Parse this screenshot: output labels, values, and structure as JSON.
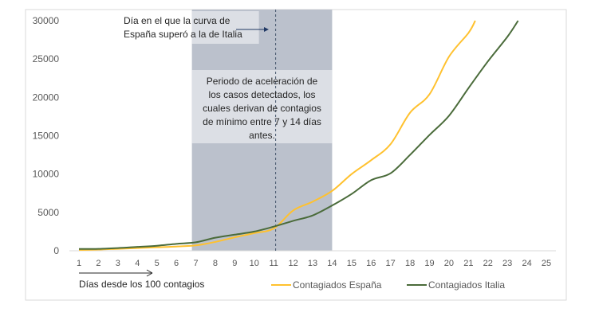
{
  "chart_data": {
    "type": "line",
    "title": "",
    "xlabel": "Días desde los 100 contagios",
    "ylabel": "",
    "xlim": [
      1,
      25
    ],
    "ylim": [
      0,
      30000
    ],
    "x_ticks": [
      "1",
      "2",
      "3",
      "4",
      "5",
      "6",
      "7",
      "8",
      "9",
      "10",
      "11",
      "12",
      "13",
      "14",
      "15",
      "16",
      "17",
      "18",
      "19",
      "20",
      "21",
      "22",
      "23",
      "24",
      "25"
    ],
    "y_ticks": [
      "0",
      "5000",
      "10000",
      "15000",
      "20000",
      "25000",
      "30000"
    ],
    "grid": false,
    "legend_position": "bottom-right",
    "series": [
      {
        "name": "Contagiados España",
        "color": "#FFC12E",
        "x": [
          1,
          2,
          3,
          4,
          5,
          6,
          7,
          8,
          9,
          10,
          11,
          12,
          13,
          14,
          15,
          16,
          17,
          18,
          19,
          20,
          21,
          21.35
        ],
        "values": [
          100,
          150,
          250,
          350,
          450,
          550,
          700,
          1150,
          1750,
          2300,
          2900,
          5250,
          6400,
          7800,
          10000,
          11800,
          13900,
          18000,
          20400,
          25300,
          28400,
          30000
        ]
      },
      {
        "name": "Contagiados Italia",
        "color": "#4A6B3A",
        "x": [
          1,
          2,
          3,
          4,
          5,
          6,
          7,
          8,
          9,
          10,
          11,
          12,
          13,
          14,
          15,
          16,
          17,
          18,
          19,
          20,
          21,
          22,
          23,
          23.55
        ],
        "values": [
          230,
          250,
          350,
          500,
          650,
          900,
          1100,
          1700,
          2100,
          2500,
          3150,
          3900,
          4600,
          5900,
          7400,
          9200,
          10100,
          12500,
          15100,
          17600,
          21200,
          24700,
          27900,
          30000
        ]
      }
    ],
    "shaded_region": {
      "from_day": 6.8,
      "to_day": 14,
      "color": "#BBC1CC"
    },
    "marker_line_day": 11.1,
    "annotations": [
      {
        "text_lines": [
          "Día en el que la curva de",
          "España superó a la de Italia"
        ]
      },
      {
        "text_lines": [
          "Periodo de aceleración de",
          "los casos detectados, los",
          "cuales derivan de contagios",
          "de mínimo entre 7 y 14 días",
          "antes."
        ]
      }
    ]
  }
}
